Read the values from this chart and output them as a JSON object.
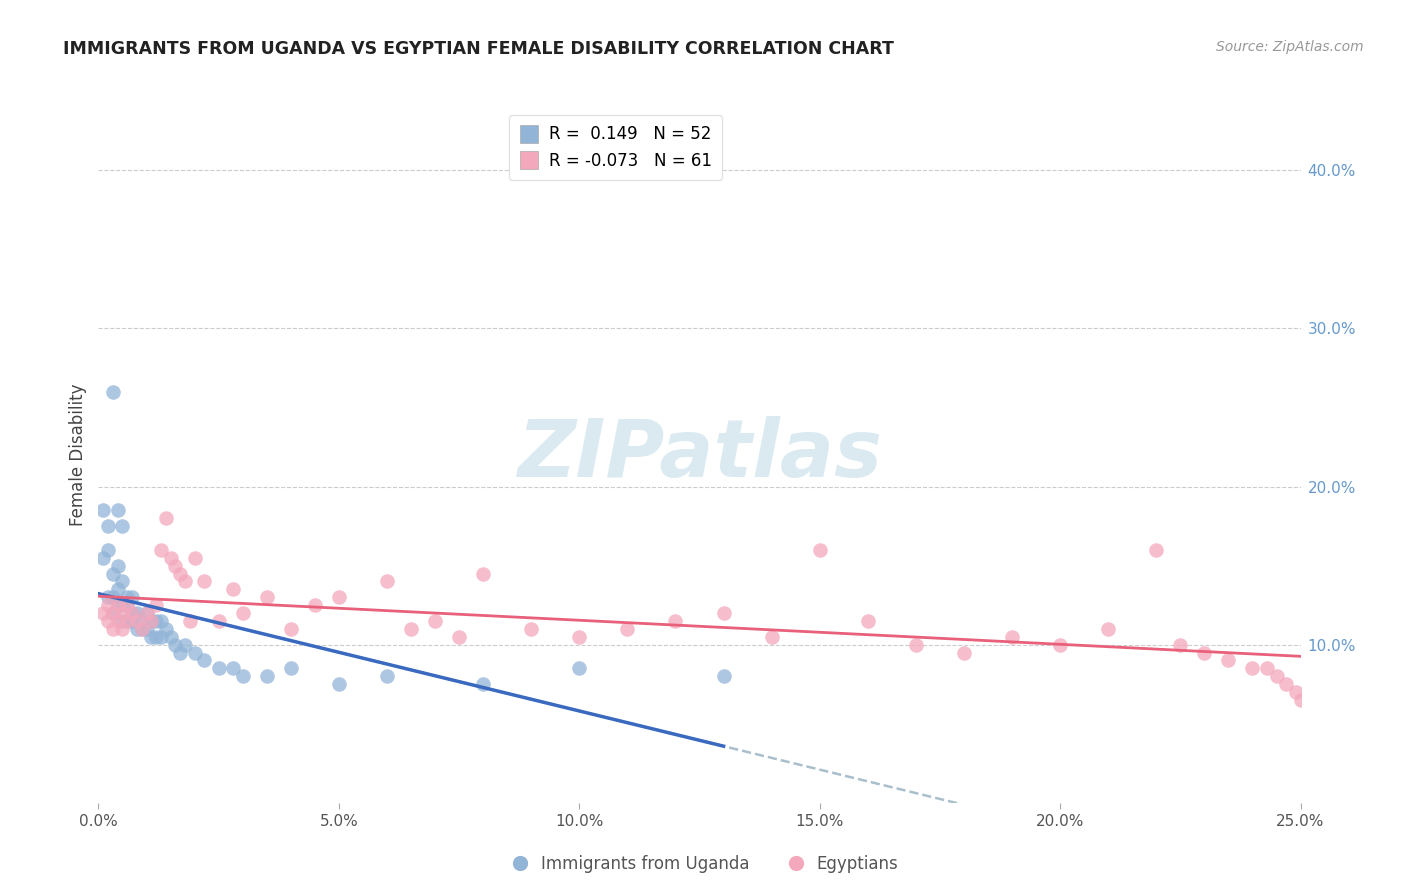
{
  "title": "IMMIGRANTS FROM UGANDA VS EGYPTIAN FEMALE DISABILITY CORRELATION CHART",
  "source": "Source: ZipAtlas.com",
  "ylabel": "Female Disability",
  "right_yticks": [
    0.1,
    0.2,
    0.3,
    0.4
  ],
  "right_ytick_labels": [
    "10.0%",
    "20.0%",
    "30.0%",
    "40.0%"
  ],
  "legend_blue_r": "0.149",
  "legend_blue_n": "52",
  "legend_pink_r": "-0.073",
  "legend_pink_n": "61",
  "legend_label_blue": "Immigrants from Uganda",
  "legend_label_pink": "Egyptians",
  "blue_color": "#92B4D7",
  "pink_color": "#F4A8BC",
  "line_blue_color": "#3A6ABF",
  "line_pink_color": "#E8607A",
  "dashed_line_color": "#AABFCC",
  "watermark": "ZIPatlas",
  "xlim": [
    0.0,
    0.25
  ],
  "ylim": [
    0.0,
    0.44
  ],
  "blue_scatter_x": [
    0.001,
    0.001,
    0.002,
    0.002,
    0.002,
    0.003,
    0.003,
    0.003,
    0.003,
    0.004,
    0.004,
    0.004,
    0.004,
    0.005,
    0.005,
    0.005,
    0.005,
    0.006,
    0.006,
    0.006,
    0.007,
    0.007,
    0.007,
    0.008,
    0.008,
    0.009,
    0.009,
    0.01,
    0.01,
    0.011,
    0.011,
    0.012,
    0.012,
    0.013,
    0.013,
    0.014,
    0.015,
    0.016,
    0.017,
    0.018,
    0.02,
    0.022,
    0.025,
    0.028,
    0.03,
    0.035,
    0.04,
    0.05,
    0.06,
    0.08,
    0.1,
    0.13
  ],
  "blue_scatter_y": [
    0.155,
    0.185,
    0.13,
    0.16,
    0.175,
    0.12,
    0.13,
    0.145,
    0.26,
    0.125,
    0.135,
    0.15,
    0.185,
    0.115,
    0.125,
    0.14,
    0.175,
    0.115,
    0.125,
    0.13,
    0.115,
    0.12,
    0.13,
    0.11,
    0.12,
    0.11,
    0.115,
    0.11,
    0.12,
    0.105,
    0.115,
    0.105,
    0.115,
    0.105,
    0.115,
    0.11,
    0.105,
    0.1,
    0.095,
    0.1,
    0.095,
    0.09,
    0.085,
    0.085,
    0.08,
    0.08,
    0.085,
    0.075,
    0.08,
    0.075,
    0.085,
    0.08
  ],
  "pink_scatter_x": [
    0.001,
    0.002,
    0.002,
    0.003,
    0.003,
    0.004,
    0.004,
    0.005,
    0.005,
    0.006,
    0.006,
    0.007,
    0.008,
    0.009,
    0.01,
    0.011,
    0.012,
    0.013,
    0.014,
    0.015,
    0.016,
    0.017,
    0.018,
    0.019,
    0.02,
    0.022,
    0.025,
    0.028,
    0.03,
    0.035,
    0.04,
    0.045,
    0.05,
    0.06,
    0.065,
    0.07,
    0.075,
    0.08,
    0.09,
    0.1,
    0.11,
    0.12,
    0.13,
    0.14,
    0.15,
    0.16,
    0.17,
    0.18,
    0.19,
    0.2,
    0.21,
    0.22,
    0.225,
    0.23,
    0.235,
    0.24,
    0.243,
    0.245,
    0.247,
    0.249,
    0.25
  ],
  "pink_scatter_y": [
    0.12,
    0.115,
    0.125,
    0.11,
    0.12,
    0.115,
    0.125,
    0.11,
    0.12,
    0.115,
    0.125,
    0.12,
    0.115,
    0.11,
    0.12,
    0.115,
    0.125,
    0.16,
    0.18,
    0.155,
    0.15,
    0.145,
    0.14,
    0.115,
    0.155,
    0.14,
    0.115,
    0.135,
    0.12,
    0.13,
    0.11,
    0.125,
    0.13,
    0.14,
    0.11,
    0.115,
    0.105,
    0.145,
    0.11,
    0.105,
    0.11,
    0.115,
    0.12,
    0.105,
    0.16,
    0.115,
    0.1,
    0.095,
    0.105,
    0.1,
    0.11,
    0.16,
    0.1,
    0.095,
    0.09,
    0.085,
    0.085,
    0.08,
    0.075,
    0.07,
    0.065
  ]
}
